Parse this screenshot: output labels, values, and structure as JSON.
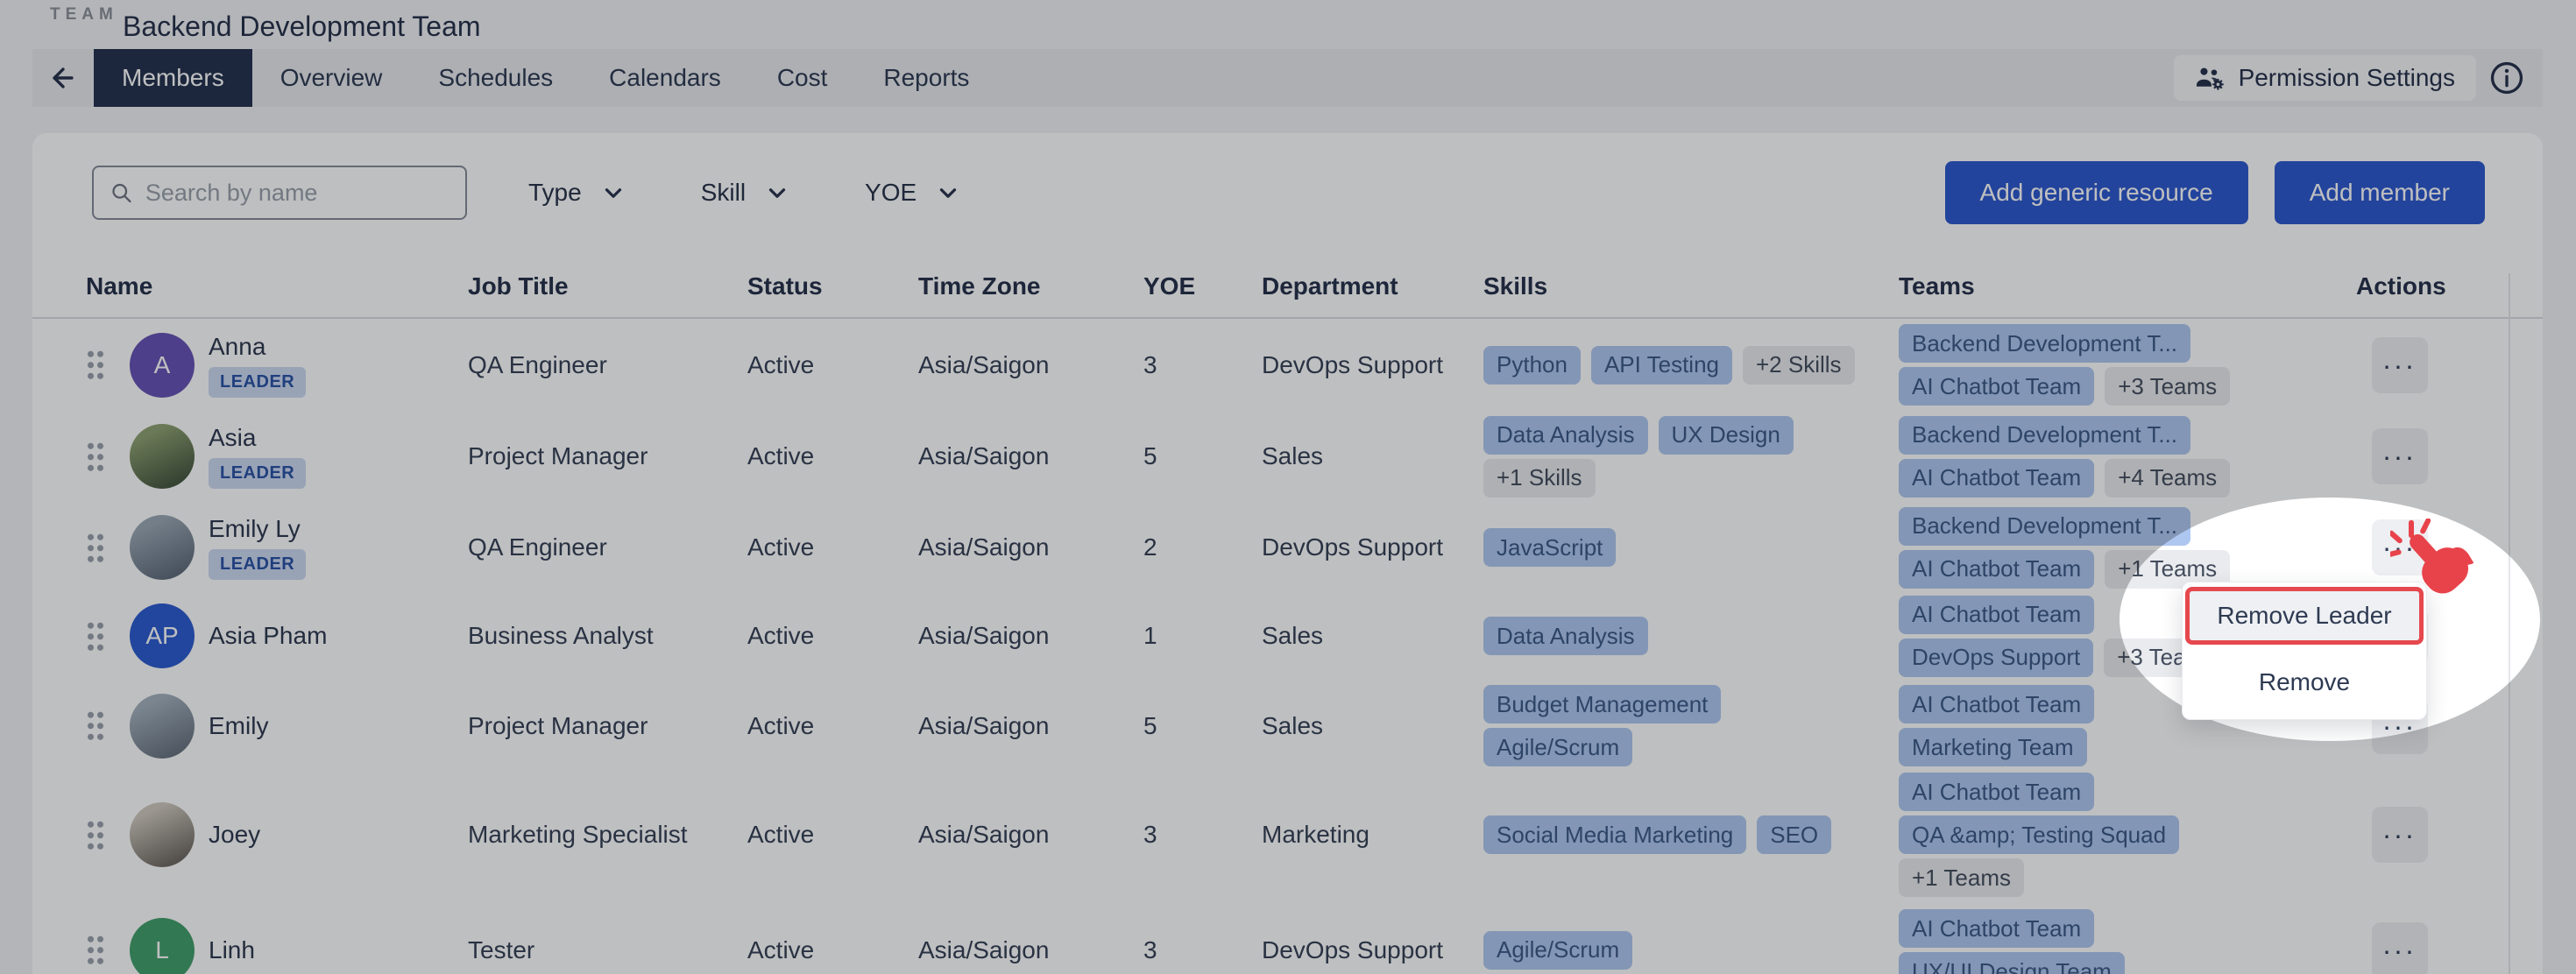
{
  "header": {
    "team_label": "TEAM",
    "title": "Backend Development Team",
    "tabs": [
      {
        "label": "Members",
        "active": true
      },
      {
        "label": "Overview",
        "active": false
      },
      {
        "label": "Schedules",
        "active": false
      },
      {
        "label": "Calendars",
        "active": false
      },
      {
        "label": "Cost",
        "active": false
      },
      {
        "label": "Reports",
        "active": false
      }
    ],
    "permission_settings_label": "Permission Settings"
  },
  "toolbar": {
    "search_placeholder": "Search by name",
    "filters": [
      "Type",
      "Skill",
      "YOE"
    ],
    "add_generic_label": "Add generic resource",
    "add_member_label": "Add member"
  },
  "table": {
    "columns": [
      "Name",
      "Job Title",
      "Status",
      "Time Zone",
      "YOE",
      "Department",
      "Skills",
      "Teams",
      "Actions"
    ],
    "rows": [
      {
        "name": "Anna",
        "leader_badge": "LEADER",
        "avatar": {
          "type": "initials",
          "text": "A",
          "color": "#6550b4"
        },
        "job_title": "QA Engineer",
        "status": "Active",
        "time_zone": "Asia/Saigon",
        "yoe": "3",
        "department": "DevOps Support",
        "skills": [
          {
            "chips": [
              "Python",
              "API Testing"
            ],
            "more": "+2 Skills"
          }
        ],
        "teams": [
          {
            "chips": [
              "Backend Development T..."
            ]
          },
          {
            "chips": [
              "AI Chatbot Team"
            ],
            "more": "+3 Teams"
          }
        ]
      },
      {
        "name": "Asia",
        "leader_badge": "LEADER",
        "avatar": {
          "type": "photo",
          "colors": [
            "#8da06f",
            "#44553e"
          ]
        },
        "job_title": "Project Manager",
        "status": "Active",
        "time_zone": "Asia/Saigon",
        "yoe": "5",
        "department": "Sales",
        "skills": [
          {
            "chips": [
              "Data Analysis",
              "UX Design"
            ]
          },
          {
            "chips": [],
            "more": "+1 Skills"
          }
        ],
        "teams": [
          {
            "chips": [
              "Backend Development T..."
            ]
          },
          {
            "chips": [
              "AI Chatbot Team"
            ],
            "more": "+4 Teams"
          }
        ]
      },
      {
        "name": "Emily Ly",
        "leader_badge": "LEADER",
        "avatar": {
          "type": "photo",
          "colors": [
            "#9aa7b4",
            "#5f6b7a"
          ]
        },
        "job_title": "QA Engineer",
        "status": "Active",
        "time_zone": "Asia/Saigon",
        "yoe": "2",
        "department": "DevOps Support",
        "skills": [
          {
            "chips": [
              "JavaScript"
            ]
          }
        ],
        "teams": [
          {
            "chips": [
              "Backend Development T..."
            ]
          },
          {
            "chips": [
              "AI Chatbot Team"
            ],
            "more": "+1 Teams"
          }
        ]
      },
      {
        "name": "Asia Pham",
        "leader_badge": null,
        "avatar": {
          "type": "initials",
          "text": "AP",
          "color": "#2a5ad0"
        },
        "job_title": "Business Analyst",
        "status": "Active",
        "time_zone": "Asia/Saigon",
        "yoe": "1",
        "department": "Sales",
        "skills": [
          {
            "chips": [
              "Data Analysis"
            ]
          }
        ],
        "teams": [
          {
            "chips": [
              "AI Chatbot Team"
            ]
          },
          {
            "chips": [
              "DevOps Support"
            ],
            "more": "+3 Teams"
          }
        ]
      },
      {
        "name": "Emily",
        "leader_badge": null,
        "avatar": {
          "type": "photo",
          "colors": [
            "#a3b0bd",
            "#67727f"
          ]
        },
        "job_title": "Project Manager",
        "status": "Active",
        "time_zone": "Asia/Saigon",
        "yoe": "5",
        "department": "Sales",
        "skills": [
          {
            "chips": [
              "Budget Management"
            ]
          },
          {
            "chips": [
              "Agile/Scrum"
            ]
          }
        ],
        "teams": [
          {
            "chips": [
              "AI Chatbot Team"
            ]
          },
          {
            "chips": [
              "Marketing Team"
            ]
          }
        ]
      },
      {
        "name": "Joey",
        "leader_badge": null,
        "avatar": {
          "type": "photo",
          "colors": [
            "#cfc8bd",
            "#6e6761"
          ]
        },
        "job_title": "Marketing Specialist",
        "status": "Active",
        "time_zone": "Asia/Saigon",
        "yoe": "3",
        "department": "Marketing",
        "skills": [
          {
            "chips": [
              "Social Media Marketing",
              "SEO"
            ]
          }
        ],
        "teams": [
          {
            "chips": [
              "AI Chatbot Team"
            ]
          },
          {
            "chips": [
              "QA &amp; Testing Squad"
            ]
          },
          {
            "chips": [],
            "more": "+1 Teams"
          }
        ]
      },
      {
        "name": "Linh",
        "leader_badge": null,
        "avatar": {
          "type": "initials",
          "text": "L",
          "color": "#3f9e69"
        },
        "job_title": "Tester",
        "status": "Active",
        "time_zone": "Asia/Saigon",
        "yoe": "3",
        "department": "DevOps Support",
        "skills": [
          {
            "chips": [
              "Agile/Scrum"
            ]
          }
        ],
        "teams": [
          {
            "chips": [
              "AI Chatbot Team"
            ]
          },
          {
            "chips": [
              "UX/UI Design Team"
            ]
          }
        ]
      }
    ]
  },
  "menu": {
    "items": [
      "Remove Leader",
      "Remove"
    ],
    "highlight_index": 0
  },
  "colors": {
    "accent_blue": "#2b57ce",
    "active_tab": "#222f4c",
    "chip_blue": "#aec7f0",
    "chip_gray": "#e9ebee",
    "leader_badge_bg": "#ccd9f2",
    "leader_badge_text": "#2750a4",
    "highlight_red": "#e5484e",
    "text_navy": "#232e48"
  }
}
